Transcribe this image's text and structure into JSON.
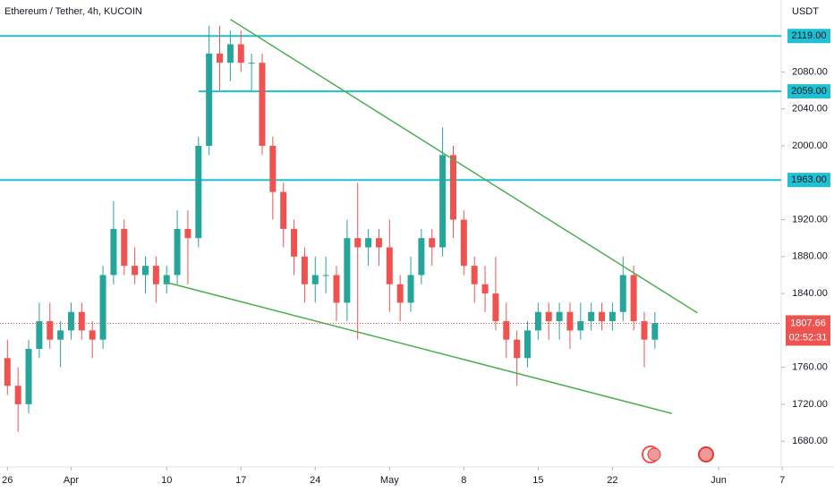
{
  "chart_data": {
    "type": "candlestick",
    "title": "Ethereum / Tether, 4h, KUCOIN",
    "y_label": "USDT",
    "x": [
      0,
      1,
      2,
      3,
      4,
      5,
      6,
      7,
      8,
      9,
      10,
      11,
      12,
      13,
      14,
      15,
      16,
      17,
      18,
      19,
      20,
      21,
      22,
      23,
      24,
      25,
      26,
      27,
      28,
      29,
      30,
      31,
      32,
      33,
      34,
      35,
      36,
      37,
      38,
      39,
      40,
      41,
      42,
      43,
      44,
      45,
      46,
      47,
      48,
      49,
      50,
      51,
      52,
      53,
      54,
      55,
      56,
      57,
      58,
      59,
      60,
      61
    ],
    "open": [
      1770,
      1740,
      1720,
      1780,
      1810,
      1790,
      1800,
      1820,
      1800,
      1790,
      1860,
      1910,
      1870,
      1860,
      1870,
      1850,
      1860,
      1910,
      1900,
      2000,
      2100,
      2090,
      2110,
      2090,
      2090,
      2000,
      1950,
      1910,
      1880,
      1850,
      1860,
      1860,
      1830,
      1900,
      1890,
      1900,
      1890,
      1850,
      1830,
      1860,
      1900,
      1890,
      1990,
      1920,
      1870,
      1850,
      1840,
      1810,
      1790,
      1770,
      1800,
      1820,
      1810,
      1820,
      1800,
      1810,
      1820,
      1810,
      1820,
      1860,
      1810,
      1790
    ],
    "high": [
      1790,
      1760,
      1790,
      1830,
      1830,
      1810,
      1830,
      1830,
      1810,
      1870,
      1940,
      1920,
      1890,
      1880,
      1880,
      1870,
      1930,
      1930,
      2010,
      2130,
      2130,
      2125,
      2125,
      2100,
      2100,
      2010,
      1960,
      1920,
      1890,
      1880,
      1880,
      1870,
      1920,
      1960,
      1910,
      1910,
      1920,
      1860,
      1880,
      1910,
      1910,
      2020,
      2000,
      1930,
      1880,
      1870,
      1880,
      1830,
      1800,
      1810,
      1830,
      1830,
      1830,
      1830,
      1830,
      1830,
      1830,
      1830,
      1880,
      1870,
      1820,
      1820
    ],
    "low": [
      1730,
      1690,
      1710,
      1770,
      1780,
      1760,
      1790,
      1790,
      1770,
      1780,
      1850,
      1860,
      1850,
      1840,
      1830,
      1840,
      1850,
      1850,
      1890,
      1990,
      2060,
      2070,
      2080,
      2060,
      1990,
      1920,
      1890,
      1860,
      1830,
      1830,
      1840,
      1810,
      1810,
      1790,
      1870,
      1870,
      1820,
      1810,
      1820,
      1850,
      1870,
      1880,
      1900,
      1860,
      1830,
      1820,
      1800,
      1770,
      1740,
      1760,
      1790,
      1790,
      1790,
      1780,
      1790,
      1800,
      1800,
      1800,
      1810,
      1800,
      1760,
      1780
    ],
    "close": [
      1740,
      1720,
      1780,
      1810,
      1790,
      1800,
      1820,
      1800,
      1790,
      1860,
      1910,
      1870,
      1860,
      1870,
      1850,
      1860,
      1910,
      1900,
      2000,
      2100,
      2090,
      2110,
      2090,
      2090,
      2000,
      1950,
      1910,
      1880,
      1850,
      1860,
      1860,
      1830,
      1900,
      1890,
      1900,
      1890,
      1850,
      1830,
      1860,
      1900,
      1890,
      1990,
      1920,
      1870,
      1850,
      1840,
      1810,
      1790,
      1770,
      1800,
      1820,
      1810,
      1820,
      1800,
      1810,
      1820,
      1810,
      1820,
      1860,
      1810,
      1790,
      1808
    ],
    "up_color": "#26a69a",
    "down_color": "#ef5350",
    "xlim": [
      -0.7,
      72.9
    ],
    "ylim": [
      1654,
      2158
    ],
    "xticks": [
      {
        "value": 0,
        "label": "26"
      },
      {
        "value": 6,
        "label": "Apr"
      },
      {
        "value": 15,
        "label": "10"
      },
      {
        "value": 22,
        "label": "17"
      },
      {
        "value": 29,
        "label": "24"
      },
      {
        "value": 36,
        "label": "May"
      },
      {
        "value": 43,
        "label": "8"
      },
      {
        "value": 50,
        "label": "15"
      },
      {
        "value": 57,
        "label": "22"
      },
      {
        "value": 67,
        "label": "Jun"
      },
      {
        "value": 73,
        "label": "7"
      }
    ],
    "yticks": [
      {
        "value": 1680,
        "label": "1680.00"
      },
      {
        "value": 1720,
        "label": "1720.00"
      },
      {
        "value": 1760,
        "label": "1760.00"
      },
      {
        "value": 1840,
        "label": "1840.00"
      },
      {
        "value": 1880,
        "label": "1880.00"
      },
      {
        "value": 1920,
        "label": "1920.00"
      },
      {
        "value": 2000,
        "label": "2000.00"
      },
      {
        "value": 2040,
        "label": "2040.00"
      },
      {
        "value": 2080,
        "label": "2080.00"
      }
    ],
    "grid": false,
    "levels": [
      {
        "value": 2119,
        "label": "2119.00",
        "x_start": -0.7
      },
      {
        "value": 2059,
        "label": "2059.00",
        "x_start": 18
      },
      {
        "value": 1963,
        "label": "1963.00",
        "x_start": -0.7
      }
    ],
    "level_color": "#1fc0d4",
    "trendlines": [
      {
        "x": [
          21,
          65
        ],
        "y": [
          2137,
          1819
        ]
      },
      {
        "x": [
          15,
          62.6
        ],
        "y": [
          1852,
          1710
        ]
      }
    ],
    "trend_color": "#4caf50",
    "last_price": {
      "value": 1807.66,
      "label": "1807.66"
    },
    "countdown": "02:52:31"
  }
}
